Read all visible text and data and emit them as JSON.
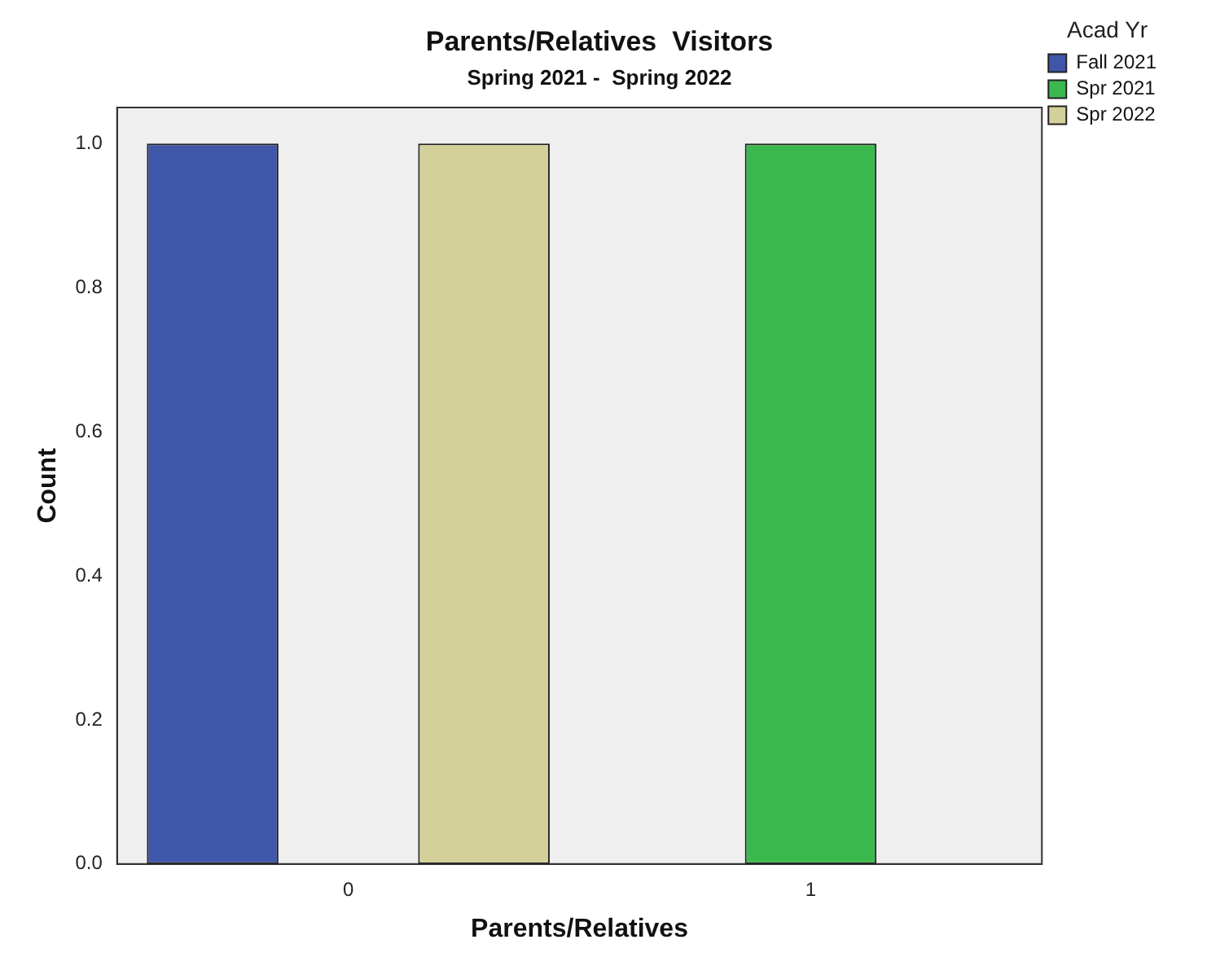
{
  "chart_data": {
    "type": "bar",
    "title": "Parents/Relatives  Visitors",
    "subtitle": "Spring 2021 -  Spring 2022",
    "xlabel": "Parents/Relatives",
    "ylabel": "Count",
    "legend_title": "Acad Yr",
    "categories": [
      "0",
      "1"
    ],
    "series": [
      {
        "name": "Fall 2021",
        "color": "#4056a8",
        "values": [
          1,
          0
        ]
      },
      {
        "name": "Spr 2021",
        "color": "#3cb94e",
        "values": [
          0,
          1
        ]
      },
      {
        "name": "Spr 2022",
        "color": "#d3d09a",
        "values": [
          1,
          0
        ]
      }
    ],
    "ylim": [
      0,
      1.05
    ],
    "yticks": [
      {
        "value": 0,
        "label": "0.0"
      },
      {
        "value": 0.2,
        "label": "0.2"
      },
      {
        "value": 0.4,
        "label": "0.4"
      },
      {
        "value": 0.6,
        "label": "0.6"
      },
      {
        "value": 0.8,
        "label": "0.8"
      },
      {
        "value": 1,
        "label": "1.0"
      }
    ],
    "grid": false,
    "legend": "right"
  }
}
